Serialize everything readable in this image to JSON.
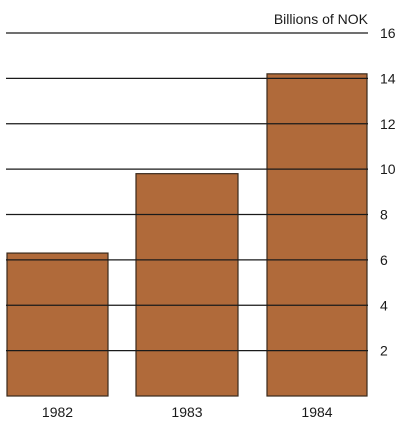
{
  "chart_data": {
    "type": "bar",
    "title": "",
    "xlabel": "",
    "ylabel": "Billions of NOK",
    "categories": [
      "1982",
      "1983",
      "1984"
    ],
    "values": [
      6.3,
      9.8,
      14.2
    ],
    "ylim": [
      0,
      16
    ],
    "yticks": [
      2,
      4,
      6,
      8,
      10,
      12,
      14,
      16
    ],
    "y_axis_side": "right",
    "grid": true,
    "legend": "none",
    "bar_color": "#b06a3a",
    "bar_edge_color": "#3a2a1c",
    "grid_color": "#1a1a1a"
  }
}
